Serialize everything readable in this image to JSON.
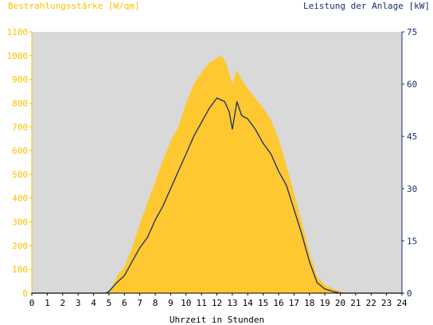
{
  "header": {
    "left_title": "Bestrahlungsstärke [W/qm]",
    "right_title": "Leistung der Anlage [kW]"
  },
  "colors": {
    "plot_bg": "#d9d9d9",
    "irradiance": "#ffc830",
    "power": "#1a2d6e",
    "left_axis_text": "#ffc000",
    "right_axis_text": "#1a2d6e"
  },
  "chart_data": {
    "type": "area",
    "xlabel": "Uhrzeit in Stunden",
    "x_ticks": [
      "0",
      "1",
      "2",
      "3",
      "4",
      "5",
      "6",
      "7",
      "8",
      "9",
      "10",
      "11",
      "12",
      "13",
      "14",
      "15",
      "16",
      "17",
      "18",
      "19",
      "20",
      "21",
      "22",
      "23",
      "24"
    ],
    "xlim": [
      0,
      24
    ],
    "y_left": {
      "label": "Bestrahlungsstärke [W/qm]",
      "ylim": [
        0,
        1100
      ],
      "ticks": [
        "0",
        "100",
        "200",
        "300",
        "400",
        "500",
        "600",
        "700",
        "800",
        "900",
        "1000",
        "1100"
      ]
    },
    "y_right": {
      "label": "Leistung der Anlage [kW]",
      "ylim": [
        0,
        75
      ],
      "ticks": [
        "0",
        "15",
        "30",
        "45",
        "60",
        "75"
      ]
    },
    "grid": false,
    "series": [
      {
        "name": "Bestrahlungsstärke [W/qm]",
        "axis": "left",
        "type": "area",
        "x": [
          0,
          4.5,
          5.0,
          5.3,
          5.6,
          6.0,
          6.5,
          7.0,
          7.5,
          8.0,
          8.5,
          9.0,
          9.5,
          10.0,
          10.5,
          11.0,
          11.5,
          12.0,
          12.3,
          12.6,
          13.0,
          13.3,
          13.6,
          14.0,
          14.5,
          15.0,
          15.5,
          16.0,
          16.5,
          17.0,
          17.5,
          18.0,
          18.5,
          19.0,
          19.5,
          20.0,
          20.3,
          24
        ],
        "values": [
          0,
          0,
          5,
          40,
          80,
          110,
          190,
          290,
          380,
          470,
          560,
          640,
          700,
          800,
          880,
          930,
          970,
          990,
          1000,
          970,
          880,
          940,
          900,
          860,
          820,
          780,
          730,
          650,
          540,
          420,
          300,
          170,
          70,
          35,
          20,
          8,
          0,
          0
        ]
      },
      {
        "name": "Leistung der Anlage [kW]",
        "axis": "right",
        "type": "line",
        "x": [
          0,
          4.8,
          5.0,
          5.5,
          6.0,
          6.5,
          7.0,
          7.5,
          8.0,
          8.5,
          9.0,
          9.5,
          10.0,
          10.5,
          11.0,
          11.5,
          12.0,
          12.5,
          12.8,
          13.0,
          13.3,
          13.6,
          14.0,
          14.5,
          15.0,
          15.5,
          16.0,
          16.5,
          17.0,
          17.5,
          18.0,
          18.5,
          19.0,
          19.5,
          20.0,
          24
        ],
        "values": [
          0,
          0,
          0.5,
          3,
          5,
          9,
          13,
          16,
          21,
          25,
          30,
          35,
          40,
          45,
          49,
          53,
          56,
          55,
          52,
          47,
          55,
          51,
          50,
          47,
          43,
          40,
          35,
          31,
          24,
          17,
          9,
          3,
          1.2,
          0.5,
          0,
          0
        ]
      }
    ]
  }
}
